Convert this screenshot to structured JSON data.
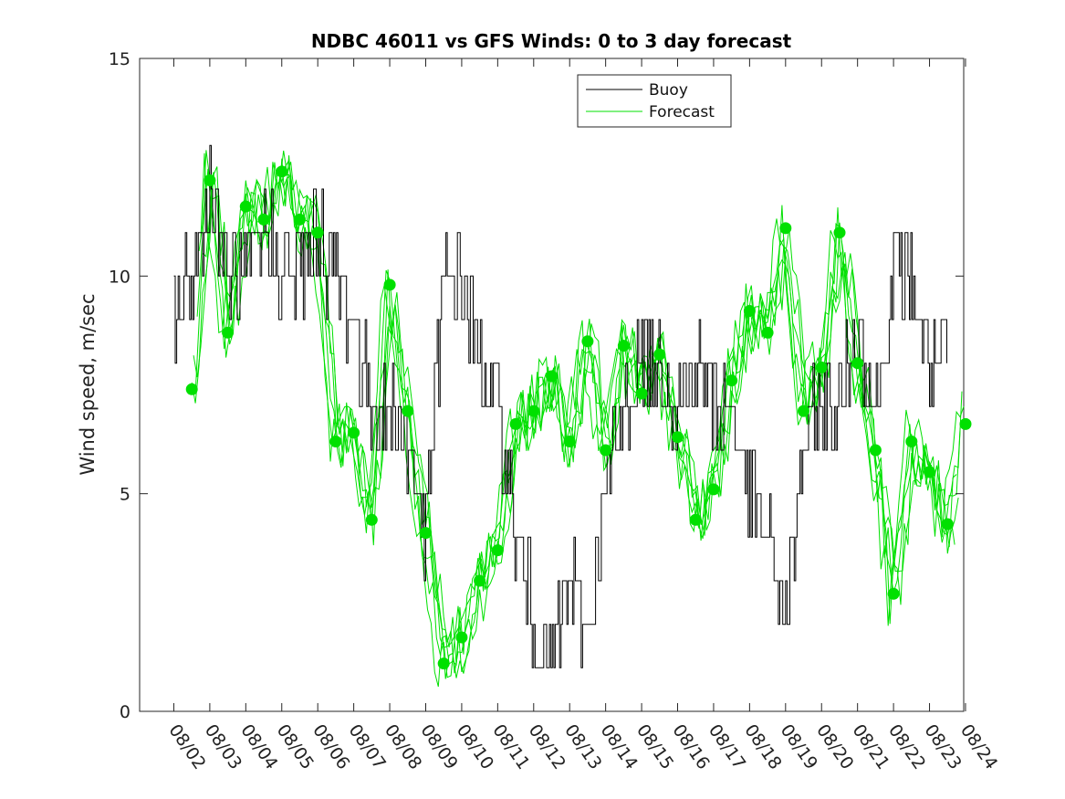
{
  "chart_data": {
    "type": "line",
    "title": "NDBC 46011 vs GFS Winds: 0 to 3 day forecast",
    "xlabel": "",
    "ylabel": "Wind speed, m/sec",
    "xlim": [
      -0.95,
      21.95
    ],
    "ylim": [
      0,
      15
    ],
    "grid": false,
    "legend_position": "top-center",
    "yticks": [
      0,
      5,
      10,
      15
    ],
    "ytick_labels": [
      "0",
      "5",
      "10",
      "15"
    ],
    "xtick_labels": [
      "08/02",
      "08/03",
      "08/04",
      "08/05",
      "08/06",
      "08/07",
      "08/08",
      "08/09",
      "08/10",
      "08/11",
      "08/12",
      "08/13",
      "08/14",
      "08/15",
      "08/16",
      "08/17",
      "08/18",
      "08/19",
      "08/20",
      "08/21",
      "08/22",
      "08/23",
      "08/24"
    ],
    "colors": {
      "buoy": "#000000",
      "forecast": "#00e000"
    },
    "series": [
      {
        "name": "Buoy",
        "x": [
          0,
          0.5,
          1,
          1.5,
          2,
          2.5,
          3,
          3.5,
          4,
          4.5,
          5,
          5.5,
          6,
          6.5,
          7,
          7.5,
          8,
          8.5,
          9,
          9.5,
          10,
          10.5,
          11,
          11.5,
          12,
          12.5,
          13,
          13.5,
          14,
          14.5,
          15,
          15.5,
          16,
          16.5,
          17,
          17.5,
          18,
          18.5,
          19,
          19.5,
          20,
          20.5,
          21,
          21.5
        ],
        "values": [
          9,
          10,
          12,
          10,
          10,
          11,
          10,
          10,
          11,
          10,
          9,
          7,
          7,
          6,
          4,
          10,
          10,
          8,
          7,
          4,
          2,
          1,
          3,
          2,
          5,
          7,
          8,
          8,
          7,
          8,
          7,
          7,
          5,
          4,
          2,
          6,
          7,
          7,
          9,
          7,
          10,
          10,
          8,
          8
        ]
      },
      {
        "name": "Forecast",
        "x": [
          0.5,
          1,
          1.5,
          2,
          2.5,
          3,
          3.5,
          4,
          4.5,
          5,
          5.5,
          6,
          6.5,
          7,
          7.5,
          8,
          8.5,
          9,
          9.5,
          10,
          10.5,
          11,
          11.5,
          12,
          12.5,
          13,
          13.5,
          14,
          14.5,
          15,
          15.5,
          16,
          16.5,
          17,
          17.5,
          18,
          18.5,
          19,
          19.5,
          20,
          20.5,
          21,
          21.5,
          22
        ],
        "values": [
          7.4,
          12.2,
          8.7,
          11.6,
          11.3,
          12.4,
          11.3,
          11.0,
          6.2,
          6.4,
          4.4,
          9.8,
          6.9,
          4.1,
          1.1,
          1.7,
          3.0,
          3.7,
          6.6,
          6.9,
          7.7,
          6.2,
          8.5,
          6.0,
          8.4,
          7.3,
          8.2,
          6.3,
          4.4,
          5.1,
          7.6,
          9.2,
          8.7,
          11.1,
          6.9,
          7.9,
          11.0,
          8.0,
          6.0,
          2.7,
          6.2,
          5.5,
          4.3,
          6.6
        ]
      }
    ]
  }
}
